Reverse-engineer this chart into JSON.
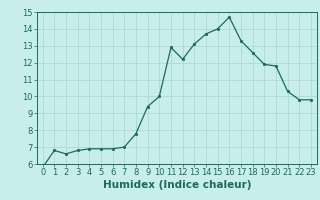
{
  "xlabel": "Humidex (Indice chaleur)",
  "ylabel": "",
  "x": [
    0,
    1,
    2,
    3,
    4,
    5,
    6,
    7,
    8,
    9,
    10,
    11,
    12,
    13,
    14,
    15,
    16,
    17,
    18,
    19,
    20,
    21,
    22,
    23
  ],
  "y": [
    5.8,
    6.8,
    6.6,
    6.8,
    6.9,
    6.9,
    6.9,
    7.0,
    7.8,
    9.4,
    10.0,
    12.9,
    12.2,
    13.1,
    13.7,
    14.0,
    14.7,
    13.3,
    12.6,
    11.9,
    11.8,
    10.3,
    9.8,
    9.8
  ],
  "line_color": "#1a6b5a",
  "marker_color": "#1a6b5a",
  "bg_color": "#c8eeec",
  "grid_color": "#b0d8d4",
  "ylim": [
    6,
    15
  ],
  "xlim": [
    -0.5,
    23.5
  ],
  "yticks": [
    6,
    7,
    8,
    9,
    10,
    11,
    12,
    13,
    14,
    15
  ],
  "xticks": [
    0,
    1,
    2,
    3,
    4,
    5,
    6,
    7,
    8,
    9,
    10,
    11,
    12,
    13,
    14,
    15,
    16,
    17,
    18,
    19,
    20,
    21,
    22,
    23
  ],
  "tick_fontsize": 6,
  "xlabel_fontsize": 7.5,
  "tick_color": "#1a6b5a",
  "spine_color": "#1a6b5a"
}
